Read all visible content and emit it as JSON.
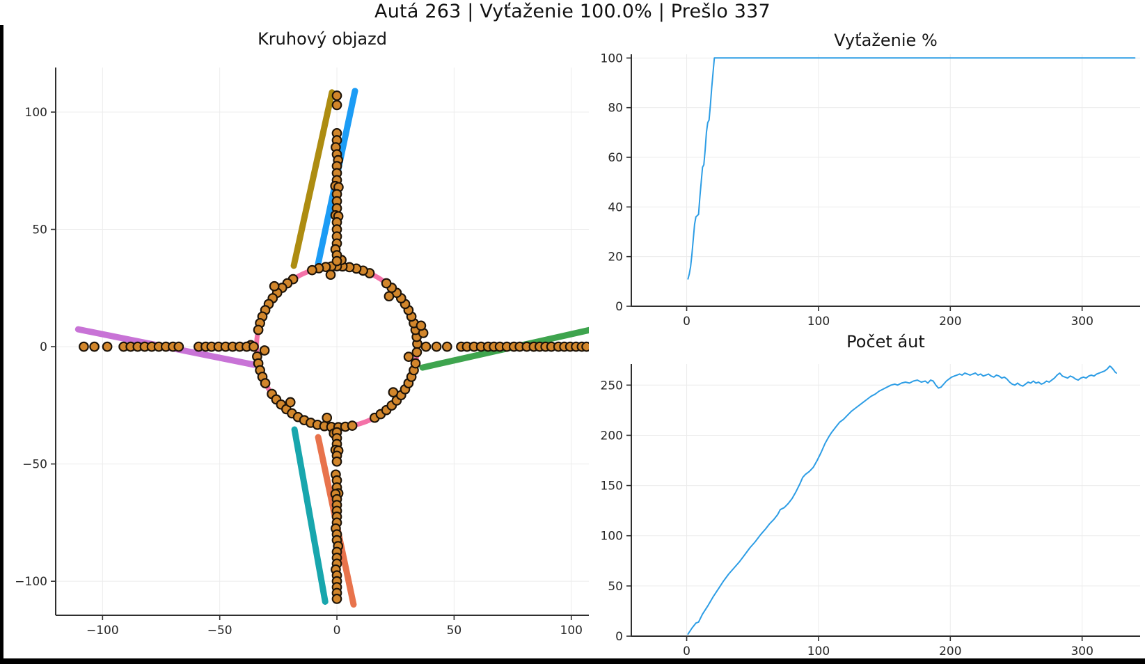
{
  "header": {
    "title": "Autá 263 | Vyťaženie 100.0% | Prešlo 337"
  },
  "colors": {
    "background": "#ffffff",
    "axis": "#2f2f2f",
    "grid": "#ececec",
    "series_blue": "#2d9de5",
    "ring_pink": "#f472a8",
    "road_blue": "#1c9cf5",
    "road_coral": "#e8734c",
    "road_green": "#3ea44e",
    "road_purple": "#c873d6",
    "road_olive": "#ad8c11",
    "road_teal": "#18a6ad",
    "car_fill": "#d2862b",
    "car_stroke": "#1c1309",
    "frame_black": "#000000"
  },
  "chart_data": [
    {
      "id": "roundabout",
      "type": "scatter",
      "title": "Kruhový objazd",
      "xlim": [
        -120,
        107.5
      ],
      "ylim": [
        -114.5,
        119
      ],
      "x_ticks": [
        -100,
        -50,
        0,
        50,
        100
      ],
      "y_ticks": [
        -100,
        -50,
        0,
        50,
        100
      ],
      "grid": true,
      "ring": {
        "cx": 0,
        "cy": 0,
        "r": 34.3,
        "color": "#f472a8",
        "stroke_width": 7
      },
      "roads": [
        {
          "name": "north-exit-road",
          "color": "#ad8c11",
          "from": [
            -18.4,
            34.5
          ],
          "to": [
            -2.1,
            108.4
          ]
        },
        {
          "name": "north-entry-road",
          "color": "#1c9cf5",
          "from": [
            -8,
            35.4
          ],
          "to": [
            7.7,
            109
          ]
        },
        {
          "name": "west-road",
          "color": "#c873d6",
          "from": [
            -110.4,
            7.4
          ],
          "to": [
            -35.3,
            -7.7
          ]
        },
        {
          "name": "east-road",
          "color": "#3ea44e",
          "from": [
            36.5,
            -8.9
          ],
          "to": [
            110.4,
            7.7
          ]
        },
        {
          "name": "south-exit-road",
          "color": "#18a6ad",
          "from": [
            -18.1,
            -35.3
          ],
          "to": [
            -5,
            -108.7
          ]
        },
        {
          "name": "south-entry-road",
          "color": "#e8734c",
          "from": [
            -8,
            -38.6
          ],
          "to": [
            7.1,
            -109.9
          ]
        }
      ],
      "cars": {
        "style": {
          "fill": "#d2862b",
          "stroke": "#1c1309",
          "radius_px": 6.3,
          "stroke_width": 2.1
        },
        "ring_radius": 34.3,
        "ring_angles_deg": [
          2,
          7,
          12,
          17,
          22,
          27,
          32,
          37,
          42,
          47,
          52,
          66,
          71,
          76,
          81,
          86,
          90,
          94,
          98,
          103,
          108,
          123,
          128,
          133,
          138,
          143,
          148,
          153,
          158,
          163,
          168,
          187,
          192,
          197,
          202,
          207,
          216,
          221,
          226,
          231,
          236,
          241,
          246,
          251,
          256,
          261,
          266,
          271,
          276,
          281,
          298,
          303,
          308,
          313,
          318,
          323,
          328,
          333,
          338,
          343,
          348
        ],
        "ring_extra": [
          [
            9,
            37.3
          ],
          [
            14,
            37.0
          ],
          [
            44,
            30.9
          ],
          [
            87,
            37.0
          ],
          [
            95,
            30.8
          ],
          [
            136,
            37.1
          ],
          [
            179,
            36.8
          ],
          [
            183,
            30.9
          ],
          [
            230,
            30.9
          ],
          [
            262,
            30.6
          ],
          [
            268,
            37.0
          ],
          [
            321,
            30.9
          ],
          [
            352,
            30.9
          ],
          [
            356,
            34.2
          ]
        ],
        "queues": {
          "west": [
            [
              -108,
              0
            ],
            [
              -103.5,
              0
            ],
            [
              -98,
              0
            ],
            [
              -91,
              0
            ],
            [
              -88,
              0
            ],
            [
              -85,
              0
            ],
            [
              -82,
              0
            ],
            [
              -79,
              0
            ],
            [
              -76,
              0
            ],
            [
              -73,
              0
            ],
            [
              -70,
              0
            ],
            [
              -67.5,
              0
            ],
            [
              -59,
              0
            ],
            [
              -56,
              0
            ],
            [
              -53.5,
              0
            ],
            [
              -50.5,
              0
            ],
            [
              -47.5,
              0
            ],
            [
              -44.5,
              0
            ],
            [
              -41.5,
              0
            ],
            [
              -38.5,
              0
            ],
            [
              -35.5,
              0
            ]
          ],
          "east": [
            [
              38,
              0
            ],
            [
              42.5,
              0
            ],
            [
              47,
              0
            ],
            [
              53,
              0
            ],
            [
              55.5,
              0
            ],
            [
              58.5,
              0
            ],
            [
              61.5,
              0
            ],
            [
              64.5,
              0
            ],
            [
              67,
              0
            ],
            [
              69.5,
              0
            ],
            [
              72.5,
              0
            ],
            [
              75.5,
              0
            ],
            [
              78,
              0
            ],
            [
              81,
              0
            ],
            [
              84,
              0
            ],
            [
              86.5,
              0
            ],
            [
              89,
              0
            ],
            [
              91.5,
              0
            ],
            [
              94.5,
              0
            ],
            [
              97,
              0
            ],
            [
              99.5,
              0
            ],
            [
              102,
              0
            ],
            [
              104.5,
              0
            ],
            [
              106.5,
              0
            ]
          ],
          "north": [
            [
              0,
              107
            ],
            [
              0,
              103
            ],
            [
              0,
              91
            ],
            [
              0,
              88
            ],
            [
              -0.5,
              85
            ],
            [
              0,
              82
            ],
            [
              0.5,
              79.5
            ],
            [
              0,
              77
            ],
            [
              0,
              74
            ],
            [
              0,
              71
            ],
            [
              -0.7,
              68.5
            ],
            [
              0.7,
              68
            ],
            [
              0,
              65
            ],
            [
              0,
              62
            ],
            [
              0,
              59
            ],
            [
              -0.6,
              56
            ],
            [
              0.6,
              55.6
            ],
            [
              0,
              53
            ],
            [
              0,
              50
            ],
            [
              0,
              47
            ],
            [
              0,
              44
            ],
            [
              -0.6,
              41.5
            ],
            [
              0,
              39
            ],
            [
              0,
              36.5
            ]
          ],
          "south": [
            [
              0,
              -36.5
            ],
            [
              0,
              -39
            ],
            [
              0,
              -41.5
            ],
            [
              -0.6,
              -44
            ],
            [
              0.6,
              -44.3
            ],
            [
              0,
              -46.5
            ],
            [
              0,
              -49
            ],
            [
              -0.5,
              -54.5
            ],
            [
              0,
              -57
            ],
            [
              0,
              -60
            ],
            [
              0.6,
              -62.5
            ],
            [
              -0.6,
              -62.8
            ],
            [
              0,
              -65
            ],
            [
              0,
              -67.5
            ],
            [
              0,
              -70
            ],
            [
              0,
              -72.5
            ],
            [
              0,
              -75
            ],
            [
              -0.5,
              -77.5
            ],
            [
              0,
              -80
            ],
            [
              0,
              -82.5
            ],
            [
              0.5,
              -85
            ],
            [
              0,
              -87.5
            ],
            [
              0,
              -90
            ],
            [
              0,
              -92.5
            ],
            [
              -0.5,
              -95
            ],
            [
              0,
              -97.5
            ],
            [
              0,
              -100
            ],
            [
              0,
              -102.5
            ],
            [
              0,
              -105
            ],
            [
              0,
              -107.5
            ]
          ]
        }
      }
    },
    {
      "id": "utilization",
      "type": "line",
      "title": "Vyťaženie %",
      "xlim": [
        -42,
        344
      ],
      "ylim": [
        0,
        101.5
      ],
      "x_ticks": [
        0,
        100,
        200,
        300
      ],
      "y_ticks": [
        0,
        20,
        40,
        60,
        80,
        100
      ],
      "grid": true,
      "line_color": "#2d9de5",
      "points": [
        [
          1,
          11
        ],
        [
          2,
          13
        ],
        [
          3,
          16
        ],
        [
          4,
          21
        ],
        [
          5,
          27
        ],
        [
          6,
          33
        ],
        [
          7,
          36
        ],
        [
          8,
          36.5
        ],
        [
          9,
          37
        ],
        [
          10,
          44
        ],
        [
          11,
          50
        ],
        [
          12,
          56
        ],
        [
          13,
          57
        ],
        [
          14,
          63
        ],
        [
          15,
          70
        ],
        [
          16,
          74
        ],
        [
          17,
          75
        ],
        [
          18,
          81
        ],
        [
          19,
          88
        ],
        [
          20,
          94
        ],
        [
          21,
          100
        ],
        [
          340,
          100
        ]
      ]
    },
    {
      "id": "car-count",
      "type": "line",
      "title": "Počet áut",
      "xlim": [
        -42,
        344
      ],
      "ylim": [
        0,
        271
      ],
      "x_ticks": [
        0,
        100,
        200,
        300
      ],
      "y_ticks": [
        0,
        50,
        100,
        150,
        200,
        250
      ],
      "grid": true,
      "line_color": "#2d9de5",
      "points": [
        [
          1,
          2
        ],
        [
          4,
          8
        ],
        [
          7,
          13
        ],
        [
          9,
          14
        ],
        [
          12,
          22
        ],
        [
          16,
          30
        ],
        [
          20,
          39
        ],
        [
          24,
          47
        ],
        [
          28,
          55
        ],
        [
          32,
          62
        ],
        [
          36,
          68
        ],
        [
          40,
          74
        ],
        [
          44,
          81
        ],
        [
          48,
          88
        ],
        [
          52,
          94
        ],
        [
          56,
          101
        ],
        [
          60,
          107
        ],
        [
          63,
          112
        ],
        [
          66,
          116
        ],
        [
          69,
          121
        ],
        [
          71,
          126
        ],
        [
          74,
          128
        ],
        [
          77,
          132
        ],
        [
          80,
          137
        ],
        [
          83,
          144
        ],
        [
          86,
          152
        ],
        [
          88,
          158
        ],
        [
          90,
          161
        ],
        [
          93,
          164
        ],
        [
          96,
          168
        ],
        [
          99,
          175
        ],
        [
          102,
          183
        ],
        [
          105,
          192
        ],
        [
          108,
          199
        ],
        [
          110,
          203
        ],
        [
          113,
          208
        ],
        [
          116,
          213
        ],
        [
          119,
          216
        ],
        [
          122,
          220
        ],
        [
          125,
          224
        ],
        [
          128,
          227
        ],
        [
          131,
          230
        ],
        [
          134,
          233
        ],
        [
          137,
          236
        ],
        [
          140,
          239
        ],
        [
          143,
          241
        ],
        [
          146,
          244
        ],
        [
          149,
          246
        ],
        [
          152,
          248
        ],
        [
          155,
          250
        ],
        [
          158,
          251
        ],
        [
          160,
          250
        ],
        [
          163,
          252
        ],
        [
          166,
          253
        ],
        [
          169,
          252
        ],
        [
          172,
          254
        ],
        [
          175,
          255
        ],
        [
          178,
          253
        ],
        [
          181,
          254
        ],
        [
          183,
          252
        ],
        [
          185,
          255
        ],
        [
          187,
          254
        ],
        [
          189,
          250
        ],
        [
          191,
          247
        ],
        [
          193,
          248
        ],
        [
          195,
          251
        ],
        [
          197,
          254
        ],
        [
          199,
          256
        ],
        [
          201,
          258
        ],
        [
          203,
          259
        ],
        [
          205,
          260
        ],
        [
          207,
          261
        ],
        [
          209,
          260
        ],
        [
          211,
          262
        ],
        [
          213,
          261
        ],
        [
          215,
          260
        ],
        [
          217,
          261
        ],
        [
          219,
          262
        ],
        [
          221,
          260
        ],
        [
          223,
          261
        ],
        [
          225,
          259
        ],
        [
          227,
          260
        ],
        [
          229,
          261
        ],
        [
          231,
          259
        ],
        [
          233,
          258
        ],
        [
          235,
          260
        ],
        [
          237,
          259
        ],
        [
          239,
          257
        ],
        [
          241,
          258
        ],
        [
          243,
          256
        ],
        [
          245,
          253
        ],
        [
          247,
          251
        ],
        [
          249,
          250
        ],
        [
          251,
          252
        ],
        [
          253,
          250
        ],
        [
          255,
          249
        ],
        [
          257,
          251
        ],
        [
          259,
          253
        ],
        [
          261,
          252
        ],
        [
          263,
          254
        ],
        [
          265,
          252
        ],
        [
          267,
          253
        ],
        [
          269,
          251
        ],
        [
          271,
          252
        ],
        [
          273,
          254
        ],
        [
          275,
          253
        ],
        [
          277,
          255
        ],
        [
          279,
          257
        ],
        [
          281,
          260
        ],
        [
          283,
          262
        ],
        [
          285,
          259
        ],
        [
          287,
          258
        ],
        [
          289,
          257
        ],
        [
          291,
          259
        ],
        [
          293,
          258
        ],
        [
          295,
          256
        ],
        [
          297,
          255
        ],
        [
          299,
          257
        ],
        [
          301,
          258
        ],
        [
          303,
          257
        ],
        [
          305,
          259
        ],
        [
          307,
          260
        ],
        [
          309,
          259
        ],
        [
          311,
          261
        ],
        [
          313,
          262
        ],
        [
          315,
          263
        ],
        [
          317,
          264
        ],
        [
          319,
          266
        ],
        [
          321,
          269
        ],
        [
          322,
          268
        ],
        [
          324,
          265
        ],
        [
          325,
          263
        ],
        [
          326,
          262
        ]
      ]
    }
  ]
}
